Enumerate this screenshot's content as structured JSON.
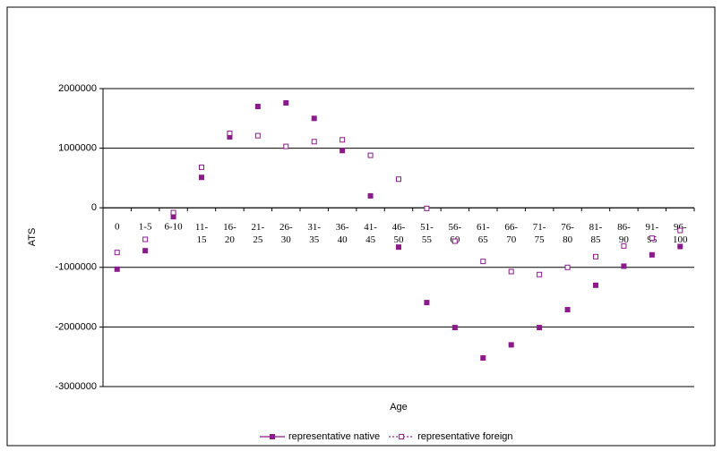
{
  "chart_data": {
    "type": "line",
    "categories": [
      "0",
      "1-5",
      "6-10",
      "11-15",
      "16-20",
      "21-25",
      "26-30",
      "31-35",
      "36-40",
      "41-45",
      "46-50",
      "51-55",
      "56-60",
      "61-65",
      "66-70",
      "71-75",
      "76-80",
      "81-85",
      "86-90",
      "91-95",
      "96-100"
    ],
    "series": [
      {
        "name": "representative native",
        "color": "#8b1a8b",
        "dash": "solid",
        "marker": "filled",
        "values": [
          -1030000,
          -720000,
          -150000,
          510000,
          1190000,
          1700000,
          1760000,
          1500000,
          960000,
          200000,
          -660000,
          -1590000,
          -2010000,
          -2520000,
          -2300000,
          -2010000,
          -1710000,
          -1300000,
          -980000,
          -790000,
          -650000
        ]
      },
      {
        "name": "representative foreign",
        "color": "#8b1a8b",
        "dash": "dotted",
        "marker": "hollow",
        "values": [
          -750000,
          -530000,
          -80000,
          680000,
          1250000,
          1210000,
          1030000,
          1110000,
          1140000,
          880000,
          480000,
          -10000,
          -560000,
          -900000,
          -1070000,
          -1120000,
          -1000000,
          -820000,
          -640000,
          -510000,
          -380000
        ]
      }
    ],
    "x_label": "Age",
    "y_label": "ATS",
    "ylim": [
      -3000000,
      2000000
    ],
    "yticks": [
      -3000000,
      -2000000,
      -1000000,
      0,
      1000000,
      2000000
    ],
    "grid": true,
    "legend": "bottom"
  }
}
